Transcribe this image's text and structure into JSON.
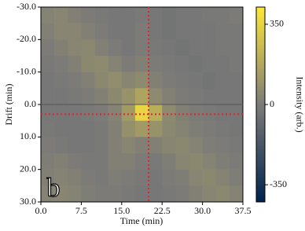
{
  "chart_data": {
    "type": "heatmap",
    "x_label": "Time (min)",
    "y_label": "Drift (min)",
    "colorbar_label": "Intensity (arb.)",
    "panel_label": "b",
    "x": [
      1.25,
      3.75,
      6.25,
      8.75,
      11.25,
      13.75,
      16.25,
      18.75,
      21.25,
      23.75,
      26.25,
      28.75,
      31.25,
      33.75,
      36.25
    ],
    "y": [
      -27.5,
      -22.5,
      -17.5,
      -12.5,
      -7.5,
      -2.5,
      2.5,
      7.5,
      12.5,
      17.5,
      22.5,
      27.5
    ],
    "z": [
      [
        30,
        40,
        20,
        0,
        -10,
        -20,
        -20,
        -10,
        -20,
        -30,
        -20,
        -20,
        -10,
        -10,
        0
      ],
      [
        20,
        40,
        40,
        20,
        0,
        -20,
        -20,
        0,
        -20,
        -30,
        -20,
        -20,
        -20,
        -10,
        -10
      ],
      [
        0,
        20,
        40,
        50,
        20,
        0,
        -20,
        0,
        -10,
        -20,
        -30,
        -20,
        -20,
        -10,
        -10
      ],
      [
        -10,
        0,
        20,
        50,
        60,
        30,
        0,
        20,
        0,
        -10,
        -20,
        -30,
        -20,
        -20,
        -10
      ],
      [
        -20,
        -10,
        0,
        20,
        50,
        70,
        40,
        60,
        20,
        0,
        -10,
        -20,
        -30,
        -20,
        -20
      ],
      [
        -20,
        -20,
        -10,
        0,
        20,
        50,
        90,
        160,
        60,
        20,
        0,
        -10,
        -20,
        -20,
        -20
      ],
      [
        -20,
        -20,
        -20,
        -10,
        0,
        30,
        120,
        350,
        200,
        60,
        20,
        0,
        -10,
        -20,
        -20
      ],
      [
        -10,
        -20,
        -20,
        -20,
        -10,
        20,
        80,
        120,
        90,
        50,
        30,
        10,
        0,
        -10,
        -20
      ],
      [
        0,
        -10,
        -20,
        -20,
        -10,
        20,
        40,
        20,
        20,
        40,
        50,
        30,
        10,
        0,
        -10
      ],
      [
        10,
        20,
        0,
        -10,
        -10,
        20,
        20,
        0,
        -10,
        10,
        40,
        50,
        30,
        10,
        0
      ],
      [
        20,
        30,
        20,
        0,
        -10,
        10,
        0,
        -10,
        -20,
        0,
        10,
        40,
        50,
        30,
        10
      ],
      [
        30,
        40,
        30,
        10,
        0,
        0,
        -10,
        -20,
        -20,
        -10,
        0,
        20,
        40,
        50,
        30
      ]
    ],
    "xlim": [
      0,
      37.5
    ],
    "xticks": [
      {
        "value": 0,
        "label": "0.0"
      },
      {
        "value": 7.5,
        "label": "7.5"
      },
      {
        "value": 15,
        "label": "15.0"
      },
      {
        "value": 22.5,
        "label": "22.5"
      },
      {
        "value": 30,
        "label": "30.0"
      },
      {
        "value": 37.5,
        "label": "37.5"
      }
    ],
    "ylim": [
      -30,
      30
    ],
    "yticks": [
      {
        "value": -30,
        "label": "-30.0"
      },
      {
        "value": -20,
        "label": "-20.0"
      },
      {
        "value": -10,
        "label": "-10.0"
      },
      {
        "value": 0,
        "label": "0.0"
      },
      {
        "value": 10,
        "label": "10.0"
      },
      {
        "value": 20,
        "label": "20.0"
      },
      {
        "value": 30,
        "label": "30.0"
      }
    ],
    "y_inverted": true,
    "clim": [
      -425,
      425
    ],
    "cticks": [
      -350,
      0,
      350
    ],
    "colormap": [
      "#00224e",
      "#7c7b78",
      "#fee838"
    ],
    "hline": 0,
    "crosshair": {
      "x": 20,
      "y": 3,
      "color": "#e8202a"
    }
  }
}
